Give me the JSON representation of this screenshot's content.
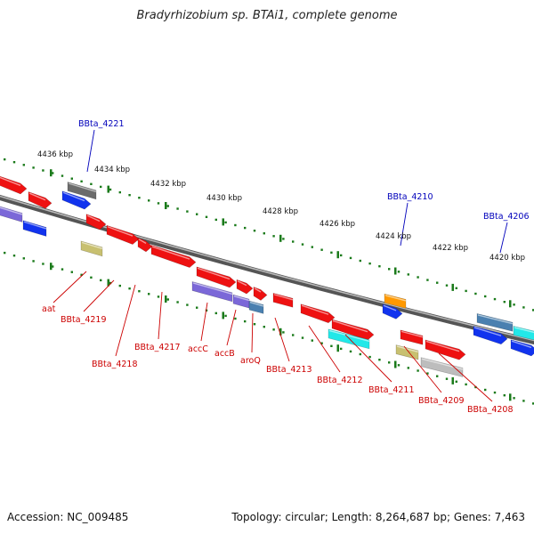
{
  "title": "Bradyrhizobium sp. BTAi1, complete genome",
  "footer": {
    "accession": "Accession: NC_009485",
    "summary": "Topology: circular; Length: 8,264,687 bp; Genes: 7,463"
  },
  "colors": {
    "backbone": "#7a7a7a",
    "tick": "#1a7a1a",
    "gene_red": "#ee1111",
    "gene_purple": "#7b68d8",
    "gene_blue": "#1133ee",
    "gene_cyan": "#22e8e8",
    "gene_orange": "#ff9900",
    "gene_gray": "#6b6b6b",
    "gene_olive": "#c8c070",
    "gene_steel": "#4a80b0",
    "gene_silver": "#bdbdbd",
    "label_blue": "#0000bb",
    "label_red": "#cc0000"
  },
  "kbp_labels": [
    "4436 kbp",
    "4434 kbp",
    "4432 kbp",
    "4430 kbp",
    "4428 kbp",
    "4426 kbp",
    "4424 kbp",
    "4422 kbp",
    "4420 kbp"
  ],
  "upper_gene_labels": [
    "BBta_4221",
    "BBta_4210",
    "BBta_4206"
  ],
  "lower_gene_labels": [
    "aat",
    "BBta_4219",
    "BBta_4218",
    "BBta_4217",
    "accC",
    "accB",
    "aroQ",
    "BBta_4213",
    "BBta_4212",
    "BBta_4211",
    "BBta_4209",
    "BBta_4208"
  ]
}
